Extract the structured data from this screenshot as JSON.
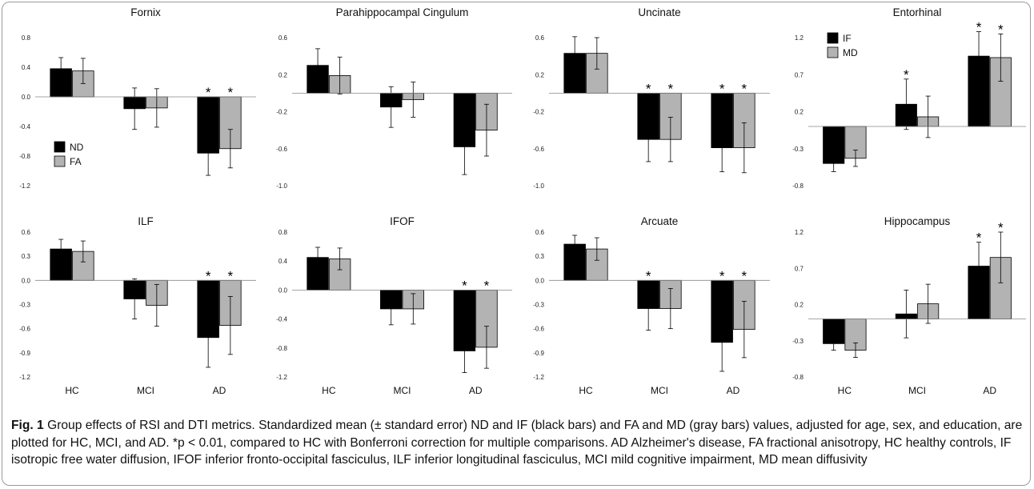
{
  "chart_data": [
    {
      "type": "bar",
      "title": "Fornix",
      "categories": [
        "HC",
        "MCI",
        "AD"
      ],
      "ylim": [
        -1.2,
        0.8
      ],
      "yticks": [
        "0.8",
        "0.4",
        "0.0",
        "-0.4",
        "-0.8",
        "-1.2"
      ],
      "show_xlabels": false,
      "legend": [
        "ND",
        "FA"
      ],
      "legend_position": "bottom-left",
      "series": [
        {
          "name": "ND",
          "color": "#000000",
          "values": [
            0.38,
            -0.16,
            -0.76
          ],
          "errors": [
            0.15,
            0.28,
            0.3
          ],
          "stars": [
            false,
            false,
            true
          ]
        },
        {
          "name": "FA",
          "color": "#b3b3b3",
          "values": [
            0.35,
            -0.15,
            -0.7
          ],
          "errors": [
            0.17,
            0.26,
            0.26
          ],
          "stars": [
            false,
            false,
            true
          ]
        }
      ]
    },
    {
      "type": "bar",
      "title": "Parahippocampal Cingulum",
      "categories": [
        "HC",
        "MCI",
        "AD"
      ],
      "ylim": [
        -1.0,
        0.6
      ],
      "yticks": [
        "0.6",
        "0.2",
        "-0.2",
        "-0.6",
        "-1.0"
      ],
      "show_xlabels": false,
      "legend": [],
      "legend_position": "",
      "series": [
        {
          "name": "ND",
          "color": "#000000",
          "values": [
            0.3,
            -0.15,
            -0.58
          ],
          "errors": [
            0.18,
            0.22,
            0.3
          ],
          "stars": [
            false,
            false,
            false
          ]
        },
        {
          "name": "FA",
          "color": "#b3b3b3",
          "values": [
            0.19,
            -0.07,
            -0.4
          ],
          "errors": [
            0.2,
            0.19,
            0.28
          ],
          "stars": [
            false,
            false,
            false
          ]
        }
      ]
    },
    {
      "type": "bar",
      "title": "Uncinate",
      "categories": [
        "HC",
        "MCI",
        "AD"
      ],
      "ylim": [
        -1.0,
        0.6
      ],
      "yticks": [
        "0.6",
        "0.2",
        "-0.2",
        "-0.6",
        "-1.0"
      ],
      "show_xlabels": false,
      "legend": [],
      "legend_position": "",
      "series": [
        {
          "name": "ND",
          "color": "#000000",
          "values": [
            0.43,
            -0.5,
            -0.59
          ],
          "errors": [
            0.18,
            0.24,
            0.26
          ],
          "stars": [
            false,
            true,
            true
          ]
        },
        {
          "name": "FA",
          "color": "#b3b3b3",
          "values": [
            0.43,
            -0.5,
            -0.59
          ],
          "errors": [
            0.17,
            0.24,
            0.27
          ],
          "stars": [
            false,
            true,
            true
          ]
        }
      ]
    },
    {
      "type": "bar",
      "title": "Entorhinal",
      "categories": [
        "HC",
        "MCI",
        "AD"
      ],
      "ylim": [
        -0.8,
        1.2
      ],
      "yticks": [
        "1.2",
        "0.7",
        "0.2",
        "-0.3",
        "-0.8"
      ],
      "show_xlabels": false,
      "legend": [
        "IF",
        "MD"
      ],
      "legend_position": "top-left",
      "series": [
        {
          "name": "IF",
          "color": "#000000",
          "values": [
            -0.5,
            0.3,
            0.95
          ],
          "errors": [
            0.11,
            0.34,
            0.33
          ],
          "stars": [
            false,
            true,
            true
          ]
        },
        {
          "name": "MD",
          "color": "#b3b3b3",
          "values": [
            -0.43,
            0.13,
            0.93
          ],
          "errors": [
            0.11,
            0.28,
            0.32
          ],
          "stars": [
            false,
            false,
            true
          ]
        }
      ]
    },
    {
      "type": "bar",
      "title": "ILF",
      "categories": [
        "HC",
        "MCI",
        "AD"
      ],
      "ylim": [
        -1.2,
        0.6
      ],
      "yticks": [
        "0.6",
        "0.3",
        "0.0",
        "-0.3",
        "-0.6",
        "-0.9",
        "-1.2"
      ],
      "show_xlabels": true,
      "legend": [],
      "legend_position": "",
      "series": [
        {
          "name": "ND",
          "color": "#000000",
          "values": [
            0.39,
            -0.23,
            -0.71
          ],
          "errors": [
            0.12,
            0.25,
            0.37
          ],
          "stars": [
            false,
            false,
            true
          ]
        },
        {
          "name": "FA",
          "color": "#b3b3b3",
          "values": [
            0.36,
            -0.31,
            -0.56
          ],
          "errors": [
            0.13,
            0.26,
            0.36
          ],
          "stars": [
            false,
            false,
            true
          ]
        }
      ]
    },
    {
      "type": "bar",
      "title": "IFOF",
      "categories": [
        "HC",
        "MCI",
        "AD"
      ],
      "ylim": [
        -1.2,
        0.8
      ],
      "yticks": [
        "0.8",
        "0.4",
        "0.0",
        "-0.4",
        "-0.8",
        "-1.2"
      ],
      "show_xlabels": true,
      "legend": [],
      "legend_position": "",
      "series": [
        {
          "name": "ND",
          "color": "#000000",
          "values": [
            0.45,
            -0.26,
            -0.84
          ],
          "errors": [
            0.14,
            0.22,
            0.3
          ],
          "stars": [
            false,
            false,
            true
          ]
        },
        {
          "name": "FA",
          "color": "#b3b3b3",
          "values": [
            0.43,
            -0.26,
            -0.79
          ],
          "errors": [
            0.15,
            0.21,
            0.29
          ],
          "stars": [
            false,
            false,
            true
          ]
        }
      ]
    },
    {
      "type": "bar",
      "title": "Arcuate",
      "categories": [
        "HC",
        "MCI",
        "AD"
      ],
      "ylim": [
        -1.2,
        0.6
      ],
      "yticks": [
        "0.6",
        "0.3",
        "0.0",
        "-0.3",
        "-0.6",
        "-0.9",
        "-1.2"
      ],
      "show_xlabels": true,
      "legend": [],
      "legend_position": "",
      "series": [
        {
          "name": "ND",
          "color": "#000000",
          "values": [
            0.45,
            -0.35,
            -0.77
          ],
          "errors": [
            0.11,
            0.27,
            0.36
          ],
          "stars": [
            false,
            true,
            true
          ]
        },
        {
          "name": "FA",
          "color": "#b3b3b3",
          "values": [
            0.39,
            -0.35,
            -0.61
          ],
          "errors": [
            0.14,
            0.25,
            0.35
          ],
          "stars": [
            false,
            false,
            true
          ]
        }
      ]
    },
    {
      "type": "bar",
      "title": "Hippocampus",
      "categories": [
        "HC",
        "MCI",
        "AD"
      ],
      "ylim": [
        -0.8,
        1.2
      ],
      "yticks": [
        "1.2",
        "0.7",
        "0.2",
        "-0.3",
        "-0.8"
      ],
      "show_xlabels": true,
      "legend": [],
      "legend_position": "",
      "series": [
        {
          "name": "IF",
          "color": "#000000",
          "values": [
            -0.34,
            0.07,
            0.73
          ],
          "errors": [
            0.09,
            0.33,
            0.33
          ],
          "stars": [
            false,
            false,
            true
          ]
        },
        {
          "name": "MD",
          "color": "#b3b3b3",
          "values": [
            -0.43,
            0.21,
            0.85
          ],
          "errors": [
            0.1,
            0.27,
            0.35
          ],
          "stars": [
            false,
            false,
            true
          ]
        }
      ]
    }
  ],
  "star_symbol": "*",
  "caption": {
    "label": "Fig. 1",
    "text": " Group effects of RSI and DTI metrics. Standardized mean (± standard error) ND and IF (black bars) and FA and MD (gray bars) values, adjusted for age, sex, and education, are plotted for HC, MCI, and AD. *p < 0.01, compared to HC with Bonferroni correction for multiple comparisons. AD Alzheimer's disease, FA fractional anisotropy, HC healthy controls, IF isotropic free water diffusion, IFOF inferior fronto-occipital fasciculus, ILF inferior longitudinal fasciculus, MCI mild cognitive impairment, MD mean diffusivity"
  }
}
